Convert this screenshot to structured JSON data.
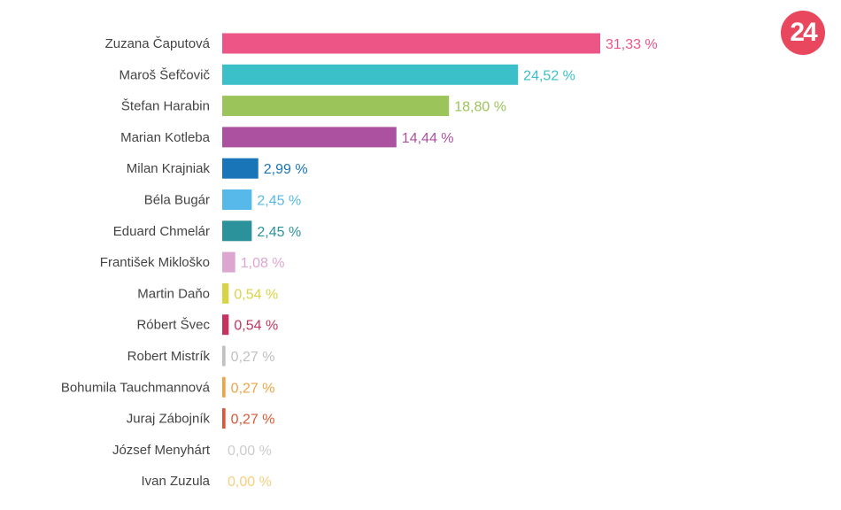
{
  "logo": {
    "text": "24",
    "color": "#e8475e"
  },
  "chart_data": {
    "type": "bar",
    "orientation": "horizontal",
    "title": "",
    "xlabel": "",
    "ylabel": "",
    "xlim": [
      0,
      31.33
    ],
    "grid": false,
    "legend": "none",
    "value_suffix": " %",
    "categories": [
      "Zuzana Čaputová",
      "Maroš Šefčovič",
      "Štefan Harabin",
      "Marian Kotleba",
      "Milan Krajniak",
      "Béla Bugár",
      "Eduard Chmelár",
      "František Mikloško",
      "Martin Daňo",
      "Róbert Švec",
      "Robert Mistrík",
      "Bohumila Tauchmannová",
      "Juraj Zábojník",
      "József Menyhárt",
      "Ivan Zuzula"
    ],
    "values": [
      31.33,
      24.52,
      18.8,
      14.44,
      2.99,
      2.45,
      2.45,
      1.08,
      0.54,
      0.54,
      0.27,
      0.27,
      0.27,
      0.0,
      0.0
    ],
    "value_labels": [
      "31,33 %",
      "24,52 %",
      "18,80 %",
      "14,44 %",
      "2,99 %",
      "2,45 %",
      "2,45 %",
      "1,08 %",
      "0,54 %",
      "0,54 %",
      "0,27 %",
      "0,27 %",
      "0,27 %",
      "0,00 %",
      "0,00 %"
    ],
    "colors": [
      "#ec5585",
      "#3bbfc9",
      "#9bc45a",
      "#ab51a0",
      "#1a75b8",
      "#56b9ea",
      "#2b929c",
      "#dba6d0",
      "#d9d447",
      "#c4345e",
      "#c0c0c0",
      "#eea445",
      "#d95836",
      "#cccccc",
      "#f5cf7e"
    ]
  }
}
